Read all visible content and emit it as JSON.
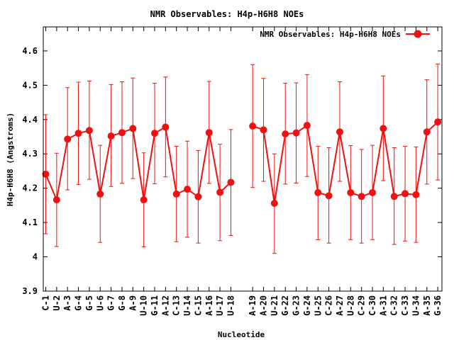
{
  "chart_data": {
    "type": "line",
    "title": "NMR Observables: H4p-H6H8 NOEs",
    "xlabel": "Nucleotide",
    "ylabel": "H4p-H6H8 (Angstroms)",
    "ylim": [
      3.9,
      4.67
    ],
    "yticks": [
      "3.9",
      "4",
      "4.1",
      "4.2",
      "4.3",
      "4.4",
      "4.5",
      "4.6"
    ],
    "legend_position": "top-right",
    "grid": false,
    "series": [
      {
        "name": "NMR Observables: H4p-H6H8 NOEs",
        "color": "#ee1111",
        "segments": [
          {
            "categories": [
              "C-1",
              "U-2",
              "A-3",
              "G-4",
              "G-5",
              "U-6",
              "G-7",
              "G-8",
              "A-9",
              "U-10",
              "G-11",
              "A-12",
              "C-13",
              "U-14",
              "C-15",
              "A-16",
              "U-17",
              "U-18"
            ],
            "values": [
              4.241,
              4.166,
              4.343,
              4.36,
              4.368,
              4.183,
              4.352,
              4.362,
              4.374,
              4.166,
              4.36,
              4.378,
              4.183,
              4.197,
              4.175,
              4.362,
              4.188,
              4.217
            ],
            "err_low": [
              4.067,
              4.03,
              4.195,
              4.211,
              4.226,
              4.042,
              4.205,
              4.214,
              4.228,
              4.029,
              4.213,
              4.233,
              4.044,
              4.057,
              4.04,
              4.214,
              4.047,
              4.062
            ],
            "err_high": [
              4.414,
              4.302,
              4.493,
              4.509,
              4.512,
              4.325,
              4.502,
              4.51,
              4.521,
              4.303,
              4.506,
              4.524,
              4.322,
              4.337,
              4.31,
              4.511,
              4.328,
              4.371
            ]
          },
          {
            "categories": [
              "A-19",
              "A-20",
              "U-21",
              "G-22",
              "G-23",
              "G-24",
              "U-25",
              "C-26",
              "A-27",
              "U-28",
              "C-29",
              "C-30",
              "A-31",
              "C-32",
              "C-33",
              "U-34",
              "A-35",
              "G-36"
            ],
            "values": [
              4.381,
              4.37,
              4.156,
              4.358,
              4.361,
              4.383,
              4.187,
              4.178,
              4.364,
              4.187,
              4.176,
              4.187,
              4.374,
              4.176,
              4.184,
              4.181,
              4.364,
              4.393
            ],
            "err_low": [
              4.202,
              4.22,
              4.01,
              4.212,
              4.215,
              4.234,
              4.05,
              4.04,
              4.22,
              4.05,
              4.04,
              4.05,
              4.222,
              4.036,
              4.046,
              4.042,
              4.212,
              4.224
            ],
            "err_high": [
              4.56,
              4.52,
              4.3,
              4.506,
              4.507,
              4.531,
              4.322,
              4.318,
              4.51,
              4.324,
              4.313,
              4.325,
              4.527,
              4.318,
              4.322,
              4.32,
              4.516,
              4.562
            ]
          }
        ]
      }
    ]
  }
}
